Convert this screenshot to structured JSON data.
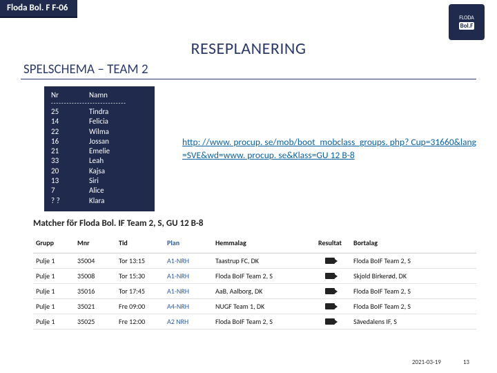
{
  "header": {
    "tab": "Floda Bol. F F-06",
    "logo_top": "FLODA",
    "logo_mid": "Bol.F"
  },
  "titles": {
    "main": "RESEPLANERING",
    "sub": "SPELSCHEMA – TEAM 2"
  },
  "roster": {
    "head_nr": "Nr",
    "head_name": "Namn",
    "sep": "-----------------------------",
    "rows": [
      {
        "nr": "25",
        "name": "Tindra"
      },
      {
        "nr": "14",
        "name": "Felicia"
      },
      {
        "nr": "22",
        "name": "Wilma"
      },
      {
        "nr": "16",
        "name": "Jossan"
      },
      {
        "nr": "21",
        "name": "Emelie"
      },
      {
        "nr": "33",
        "name": "Leah"
      },
      {
        "nr": "20",
        "name": "Kajsa"
      },
      {
        "nr": "13",
        "name": "Siri"
      },
      {
        "nr": "7",
        "name": "Alice"
      },
      {
        "nr": "? ?",
        "name": "Klara"
      }
    ]
  },
  "link": "http: //www. procup. se/mob/boot_mobclass_groups. php? Cup=31660&lang=SVE&wd=www. procup. se&Klass=GU 12 B-8",
  "matches": {
    "title": "Matcher för Floda Bol. IF Team 2, S, GU 12 B-8",
    "cols": [
      "Grupp",
      "Mnr",
      "Tid",
      "Plan",
      "Hemmalag",
      "Resultat",
      "Bortalag"
    ],
    "rows": [
      {
        "grupp": "Pulje 1",
        "mnr": "35004",
        "tid": "Tor 13:15",
        "plan": "A1-NRH",
        "home": "Taastrup FC, DK",
        "away": "Floda BoIF Team 2, S"
      },
      {
        "grupp": "Pulje 1",
        "mnr": "35008",
        "tid": "Tor 15:30",
        "plan": "A1-NRH",
        "home": "Floda BoIF Team 2, S",
        "away": "Skjold Birkerød, DK"
      },
      {
        "grupp": "Pulje 1",
        "mnr": "35016",
        "tid": "Tor 17:45",
        "plan": "A1-NRH",
        "home": "AaB, Aalborg, DK",
        "away": "Floda BoIF Team 2, S"
      },
      {
        "grupp": "Pulje 1",
        "mnr": "35021",
        "tid": "Fre 09:00",
        "plan": "A4-NRH",
        "home": "NUGF Team 1, DK",
        "away": "Floda BoIF Team 2, S"
      },
      {
        "grupp": "Pulje 1",
        "mnr": "35025",
        "tid": "Fre 12:00",
        "plan": "A2 NRH",
        "home": "Floda BoIF Team 2, S",
        "away": "Sävedalens IF, S"
      }
    ]
  },
  "footer": {
    "date": "2021-03-19",
    "page": "13"
  },
  "colors": {
    "brand": "#1f2a4d",
    "brand_text": "#2b3a6b",
    "link": "#0b63a6"
  }
}
